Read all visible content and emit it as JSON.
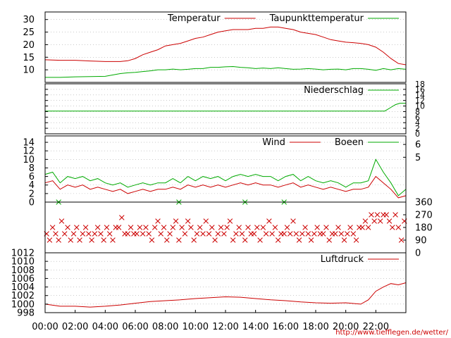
{
  "footer": {
    "url_text": "http://www.tiefflegen.de/wetter/"
  },
  "chart_data": [
    {
      "type": "line",
      "name": "temperature-panel",
      "ylim": [
        5,
        33
      ],
      "yticks": [
        10,
        15,
        20,
        25,
        30
      ],
      "legend": [
        "Temperatur",
        "Taupunkttemperatur"
      ],
      "series_colors": {
        "Temperatur": "#cc0000",
        "Taupunkttemperatur": "#00aa00"
      },
      "series": [
        {
          "name": "Temperatur",
          "color": "#cc0000",
          "x": [
            0,
            1,
            2,
            3,
            4,
            5,
            5.5,
            6,
            6.5,
            7,
            7.5,
            8,
            8.5,
            9,
            9.5,
            10,
            10.5,
            11,
            11.5,
            12,
            12.5,
            13,
            13.5,
            14,
            14.5,
            15,
            15.5,
            16,
            16.5,
            17,
            17.5,
            18,
            18.5,
            19,
            19.5,
            20,
            20.5,
            21,
            21.5,
            22,
            22.5,
            23,
            23.5,
            24
          ],
          "y": [
            14,
            13.8,
            13.8,
            13.5,
            13.3,
            13.3,
            13.6,
            14.5,
            16,
            17,
            18,
            19.5,
            20,
            20.5,
            21.5,
            22.5,
            23,
            24,
            25,
            25.5,
            26,
            26,
            26,
            26.5,
            26.5,
            27,
            27,
            26.5,
            26,
            25,
            24.5,
            24,
            23,
            22,
            21.5,
            21,
            20.8,
            20.5,
            20,
            19,
            17,
            14.5,
            12.5,
            12
          ]
        },
        {
          "name": "Taupunkttemperatur",
          "color": "#00aa00",
          "x": [
            0,
            1,
            2,
            3,
            4,
            5,
            5.5,
            6,
            6.5,
            7,
            7.5,
            8,
            8.5,
            9,
            9.5,
            10,
            10.5,
            11,
            11.5,
            12,
            12.5,
            13,
            13.5,
            14,
            14.5,
            15,
            15.5,
            16,
            16.5,
            17,
            17.5,
            18,
            18.5,
            19,
            19.5,
            20,
            20.5,
            21,
            21.5,
            22,
            22.5,
            23,
            23.5,
            24
          ],
          "y": [
            7,
            7,
            7.2,
            7.3,
            7.4,
            8.5,
            8.8,
            9,
            9.3,
            9.6,
            10,
            10,
            10.3,
            10,
            10.2,
            10.5,
            10.5,
            11,
            11,
            11.2,
            11.3,
            11,
            10.8,
            10.5,
            10.7,
            10.5,
            10.8,
            10.5,
            10.2,
            10.3,
            10.5,
            10.3,
            10,
            10.2,
            10.3,
            10,
            10.5,
            10.5,
            10.2,
            9.8,
            10.5,
            10,
            10.5,
            10.2
          ]
        }
      ]
    },
    {
      "type": "line",
      "name": "precipitation-panel",
      "ylim": [
        0,
        18
      ],
      "yticks": [
        0,
        2,
        4,
        6,
        8,
        10,
        12,
        14,
        16,
        18
      ],
      "legend": [
        "Niederschlag"
      ],
      "series_colors": {
        "Niederschlag": "#00aa00"
      },
      "series": [
        {
          "name": "Niederschlag",
          "color": "#00aa00",
          "x": [
            0,
            22.6,
            23.0,
            23.3,
            23.6,
            24
          ],
          "y": [
            8.2,
            8.2,
            9.5,
            10.5,
            11,
            11
          ]
        }
      ]
    },
    {
      "type": "line",
      "name": "wind-panel",
      "ylim": [
        0,
        15.5
      ],
      "yticks": [
        0,
        2,
        4,
        6,
        8,
        10,
        12,
        14
      ],
      "y2ticks": [
        [
          "5",
          10.5
        ],
        [
          "6",
          13.5
        ]
      ],
      "legend": [
        "Wind",
        "Boeen"
      ],
      "series_colors": {
        "Wind": "#cc0000",
        "Boeen": "#00aa00"
      },
      "series": [
        {
          "name": "Wind",
          "color": "#cc0000",
          "x": [
            0,
            0.5,
            1,
            1.5,
            2,
            2.5,
            3,
            3.5,
            4,
            4.5,
            5,
            5.5,
            6,
            6.5,
            7,
            7.5,
            8,
            8.5,
            9,
            9.5,
            10,
            10.5,
            11,
            11.5,
            12,
            12.5,
            13,
            13.5,
            14,
            14.5,
            15,
            15.5,
            16,
            16.5,
            17,
            17.5,
            18,
            18.5,
            19,
            19.5,
            20,
            20.5,
            21,
            21.5,
            22,
            22.5,
            23,
            23.5,
            24
          ],
          "y": [
            4.5,
            5,
            3,
            4,
            3.5,
            4,
            3,
            3.5,
            3,
            2.5,
            3,
            2,
            2.5,
            3,
            2.5,
            3,
            3,
            3.5,
            3,
            4,
            3.5,
            4,
            3.5,
            4,
            3.5,
            4,
            4.5,
            4,
            4.5,
            4,
            4,
            3.5,
            4,
            4.5,
            3.5,
            4,
            3.5,
            3,
            3.5,
            3,
            2.5,
            3,
            3,
            3.5,
            6,
            4.5,
            3,
            1,
            1.5
          ]
        },
        {
          "name": "Boeen",
          "color": "#00aa00",
          "x": [
            0,
            0.5,
            1,
            1.5,
            2,
            2.5,
            3,
            3.5,
            4,
            4.5,
            5,
            5.5,
            6,
            6.5,
            7,
            7.5,
            8,
            8.5,
            9,
            9.5,
            10,
            10.5,
            11,
            11.5,
            12,
            12.5,
            13,
            13.5,
            14,
            14.5,
            15,
            15.5,
            16,
            16.5,
            17,
            17.5,
            18,
            18.5,
            19,
            19.5,
            20,
            20.5,
            21,
            21.5,
            22,
            22.5,
            23,
            23.5,
            24
          ],
          "y": [
            6.5,
            7,
            4.5,
            6,
            5.5,
            6,
            5,
            5.5,
            4.5,
            4,
            4.5,
            3.5,
            4,
            4.5,
            4,
            4.5,
            4.5,
            5.5,
            4.5,
            6,
            5,
            6,
            5.5,
            6,
            5,
            6,
            6.5,
            6,
            6.5,
            6,
            6,
            5,
            6,
            6.5,
            5,
            6,
            5,
            4.5,
            5,
            4.5,
            3.5,
            4.5,
            4.5,
            5,
            10,
            7,
            4.5,
            1.5,
            3
          ]
        }
      ]
    },
    {
      "type": "scatter",
      "name": "wind-direction-panel",
      "ylim": [
        0,
        360
      ],
      "y2ticks": [
        [
          "0",
          0
        ],
        [
          "90",
          90
        ],
        [
          "180",
          180
        ],
        [
          "270",
          270
        ],
        [
          "360",
          360
        ]
      ],
      "series_colors": {
        "direction": "#cc0000",
        "calm": "#00aa00"
      },
      "series": [
        {
          "name": "",
          "color": "#cc0000",
          "x": [
            0.1,
            0.3,
            0.5,
            0.7,
            0.9,
            1.1,
            1.3,
            1.5,
            1.7,
            1.9,
            2.1,
            2.3,
            2.5,
            2.7,
            2.9,
            3.1,
            3.3,
            3.5,
            3.7,
            3.9,
            4.1,
            4.3,
            4.5,
            4.7,
            4.9,
            5.1,
            5.3,
            5.5,
            5.7,
            5.9,
            6.1,
            6.3,
            6.5,
            6.7,
            6.9,
            7.1,
            7.3,
            7.5,
            7.7,
            7.9,
            8.1,
            8.3,
            8.5,
            8.7,
            8.9,
            9.1,
            9.3,
            9.5,
            9.7,
            9.9,
            10.1,
            10.3,
            10.5,
            10.7,
            10.9,
            11.1,
            11.3,
            11.5,
            11.7,
            11.9,
            12.1,
            12.3,
            12.5,
            12.7,
            12.9,
            13.1,
            13.3,
            13.5,
            13.7,
            13.9,
            14.1,
            14.3,
            14.5,
            14.7,
            14.9,
            15.1,
            15.3,
            15.5,
            15.7,
            15.9,
            16.1,
            16.3,
            16.5,
            16.7,
            16.9,
            17.1,
            17.3,
            17.5,
            17.7,
            17.9,
            18.1,
            18.3,
            18.5,
            18.7,
            18.9,
            19.1,
            19.3,
            19.5,
            19.7,
            19.9,
            20.1,
            20.3,
            20.5,
            20.7,
            20.9,
            21.1,
            21.3,
            21.5,
            21.7,
            21.9,
            22.1,
            22.3,
            22.5,
            22.7,
            22.9,
            23.1,
            23.3,
            23.5,
            23.7,
            23.9
          ],
          "y": [
            135,
            90,
            180,
            135,
            90,
            225,
            135,
            180,
            90,
            135,
            180,
            90,
            135,
            180,
            135,
            90,
            135,
            180,
            135,
            90,
            180,
            135,
            90,
            180,
            180,
            250,
            135,
            135,
            180,
            135,
            135,
            180,
            135,
            180,
            135,
            90,
            180,
            225,
            135,
            180,
            90,
            135,
            180,
            225,
            90,
            180,
            135,
            225,
            180,
            90,
            135,
            180,
            135,
            225,
            135,
            180,
            90,
            135,
            180,
            135,
            180,
            225,
            90,
            135,
            180,
            135,
            90,
            180,
            135,
            135,
            180,
            90,
            180,
            135,
            225,
            135,
            180,
            90,
            135,
            135,
            180,
            135,
            225,
            135,
            90,
            135,
            180,
            135,
            90,
            135,
            180,
            135,
            135,
            180,
            90,
            135,
            135,
            180,
            135,
            90,
            135,
            180,
            135,
            90,
            180,
            180,
            225,
            180,
            270,
            225,
            270,
            225,
            270,
            270,
            225,
            180,
            270,
            180,
            90,
            225
          ]
        },
        {
          "name": "",
          "color": "#00aa00",
          "x": [
            0.9,
            8.9,
            13.3,
            15.9
          ],
          "y": [
            360,
            360,
            360,
            360
          ]
        }
      ]
    },
    {
      "type": "line",
      "name": "pressure-panel",
      "ylim": [
        998,
        1012
      ],
      "yticks": [
        998,
        1000,
        1002,
        1004,
        1006,
        1008,
        1010,
        1012
      ],
      "xticks": [
        "00:00",
        "02:00",
        "04:00",
        "06:00",
        "08:00",
        "10:00",
        "12:00",
        "14:00",
        "16:00",
        "18:00",
        "20:00",
        "22:00"
      ],
      "legend": [
        "Luftdruck"
      ],
      "series_colors": {
        "Luftdruck": "#cc0000"
      },
      "series": [
        {
          "name": "Luftdruck",
          "color": "#cc0000",
          "x": [
            0,
            1,
            2,
            3,
            4,
            5,
            6,
            7,
            8,
            9,
            10,
            11,
            12,
            13,
            14,
            15,
            16,
            17,
            18,
            19,
            20,
            21,
            21.5,
            22,
            22.5,
            23,
            23.5,
            24
          ],
          "y": [
            1000,
            999.5,
            999.5,
            999.3,
            999.5,
            999.8,
            1000.2,
            1000.6,
            1000.8,
            1001,
            1001.3,
            1001.5,
            1001.7,
            1001.6,
            1001.3,
            1001,
            1000.8,
            1000.5,
            1000.3,
            1000.2,
            1000.3,
            1000,
            1001,
            1003,
            1004,
            1004.8,
            1004.5,
            1005
          ]
        }
      ]
    }
  ]
}
